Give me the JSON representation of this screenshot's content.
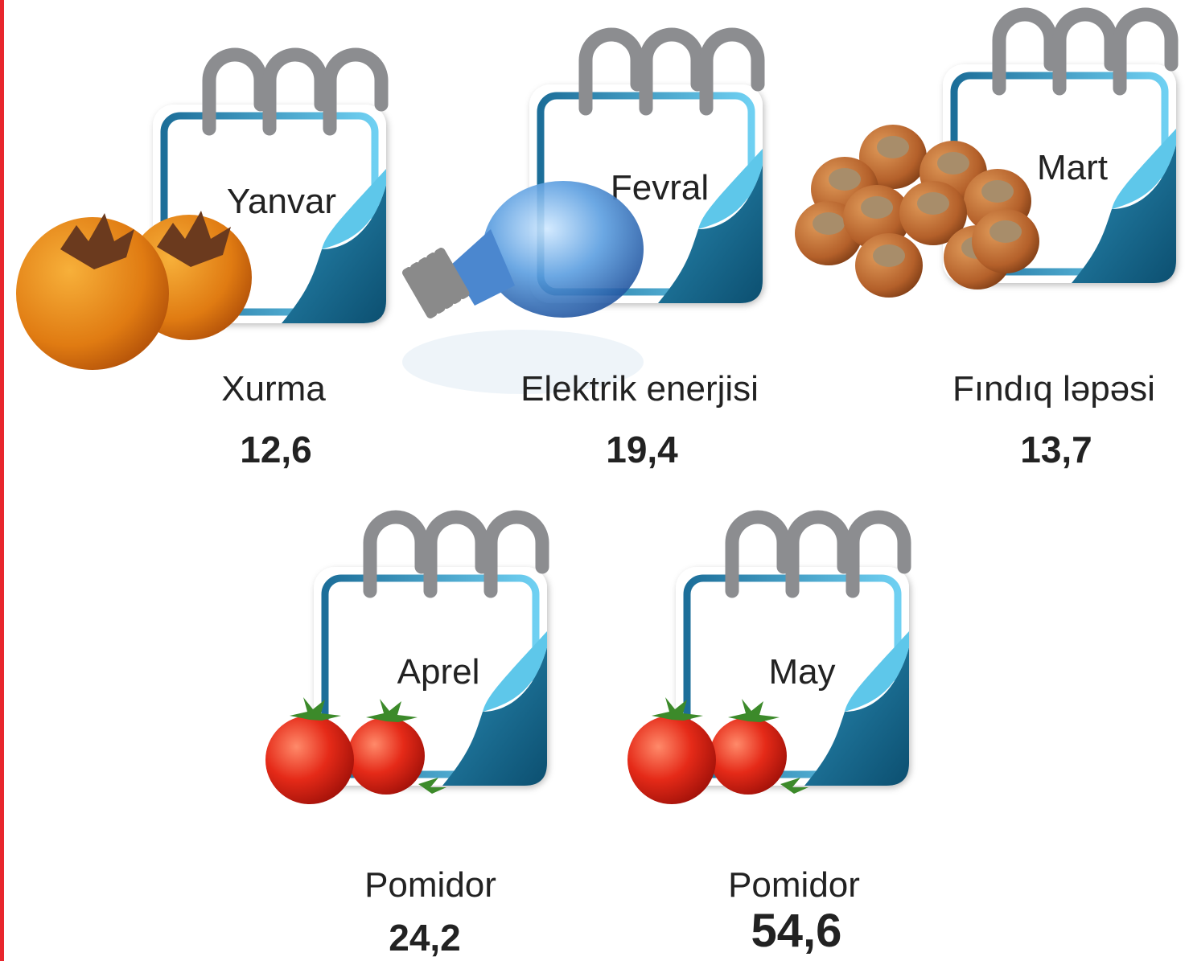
{
  "items": [
    {
      "month": "Yanvar",
      "product": "Xurma",
      "value": "12,6"
    },
    {
      "month": "Fevral",
      "product": "Elektrik enerjisi",
      "value": "19,4"
    },
    {
      "month": "Mart",
      "product": "Fındıq ləpəsi",
      "value": "13,7"
    },
    {
      "month": "Aprel",
      "product": "Pomidor",
      "value": "24,2"
    },
    {
      "month": "May",
      "product": "Pomidor",
      "value": "54,6"
    }
  ]
}
